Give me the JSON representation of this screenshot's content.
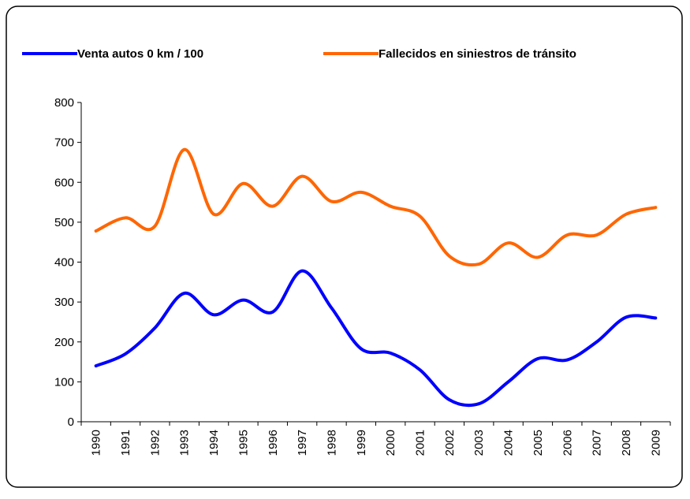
{
  "chart_data": {
    "type": "line",
    "categories": [
      "1990",
      "1991",
      "1992",
      "1993",
      "1994",
      "1995",
      "1996",
      "1997",
      "1998",
      "1999",
      "2000",
      "2001",
      "2002",
      "2003",
      "2004",
      "2005",
      "2006",
      "2007",
      "2008",
      "2009"
    ],
    "series": [
      {
        "name": "Venta autos 0 km / 100",
        "color": "#0000ff",
        "values": [
          140,
          170,
          235,
          322,
          268,
          305,
          275,
          378,
          285,
          183,
          172,
          130,
          55,
          45,
          100,
          158,
          155,
          200,
          262,
          260
        ]
      },
      {
        "name": "Fallecidos en siniestros de tránsito",
        "color": "#ff6600",
        "values": [
          478,
          511,
          490,
          682,
          520,
          597,
          540,
          615,
          552,
          575,
          540,
          515,
          415,
          395,
          448,
          412,
          468,
          468,
          520,
          537
        ]
      }
    ],
    "ylim": [
      0,
      800
    ],
    "yticks": [
      0,
      100,
      200,
      300,
      400,
      500,
      600,
      700,
      800
    ]
  }
}
